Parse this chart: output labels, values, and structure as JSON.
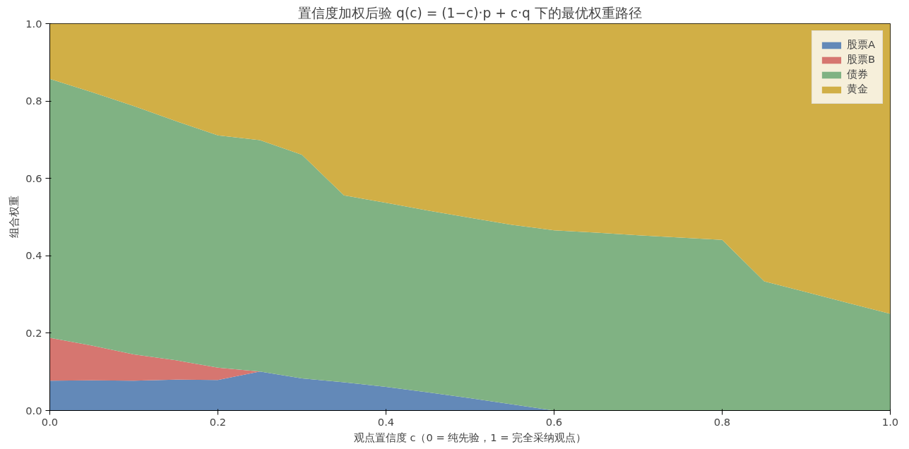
{
  "chart_data": {
    "type": "area",
    "stacked": true,
    "title": "置信度加权后验 q(c) = (1−c)·p + c·q 下的最优权重路径",
    "xlabel": "观点置信度 c（0 = 纯先验，1 = 完全采纳观点）",
    "ylabel": "组合权重",
    "x": [
      0,
      0.05,
      0.1,
      0.15,
      0.2,
      0.25,
      0.3,
      0.35,
      0.4,
      0.45,
      0.5,
      0.55,
      0.6,
      0.65,
      0.7,
      0.75,
      0.8,
      0.85,
      0.9,
      0.95,
      1.0
    ],
    "series": [
      {
        "name": "股票A",
        "color": "#6389b8",
        "values": [
          0.077,
          0.078,
          0.077,
          0.08,
          0.079,
          0.101,
          0.083,
          0.073,
          0.061,
          0.047,
          0.032,
          0.016,
          0,
          0,
          0,
          0,
          0,
          0,
          0,
          0,
          0
        ]
      },
      {
        "name": "股票B",
        "color": "#d67670",
        "values": [
          0.111,
          0.09,
          0.068,
          0.05,
          0.032,
          0,
          0,
          0,
          0,
          0,
          0,
          0,
          0,
          0,
          0,
          0,
          0,
          0,
          0,
          0,
          0
        ]
      },
      {
        "name": "债券",
        "color": "#80b283",
        "values": [
          0.669,
          0.655,
          0.642,
          0.618,
          0.6,
          0.598,
          0.578,
          0.483,
          0.476,
          0.47,
          0.466,
          0.464,
          0.466,
          0.46,
          0.453,
          0.447,
          0.441,
          0.334,
          0.306,
          0.278,
          0.25
        ]
      },
      {
        "name": "黄金",
        "color": "#d1af46",
        "values": [
          0.143,
          0.177,
          0.213,
          0.252,
          0.289,
          0.301,
          0.339,
          0.444,
          0.463,
          0.483,
          0.502,
          0.52,
          0.534,
          0.54,
          0.547,
          0.553,
          0.559,
          0.666,
          0.694,
          0.722,
          0.75
        ]
      }
    ],
    "xlim": [
      0,
      1.0
    ],
    "ylim": [
      0,
      1.0
    ],
    "xticks": [
      {
        "value": 0,
        "label": "0.0"
      },
      0.2,
      0.4,
      0.6,
      0.8,
      {
        "value": 1.0,
        "label": "1.0"
      }
    ],
    "yticks": [
      {
        "value": 0,
        "label": "0.0"
      },
      0.2,
      0.4,
      0.6,
      0.8,
      {
        "value": 1.0,
        "label": "1.0"
      }
    ],
    "legend": "top right"
  }
}
